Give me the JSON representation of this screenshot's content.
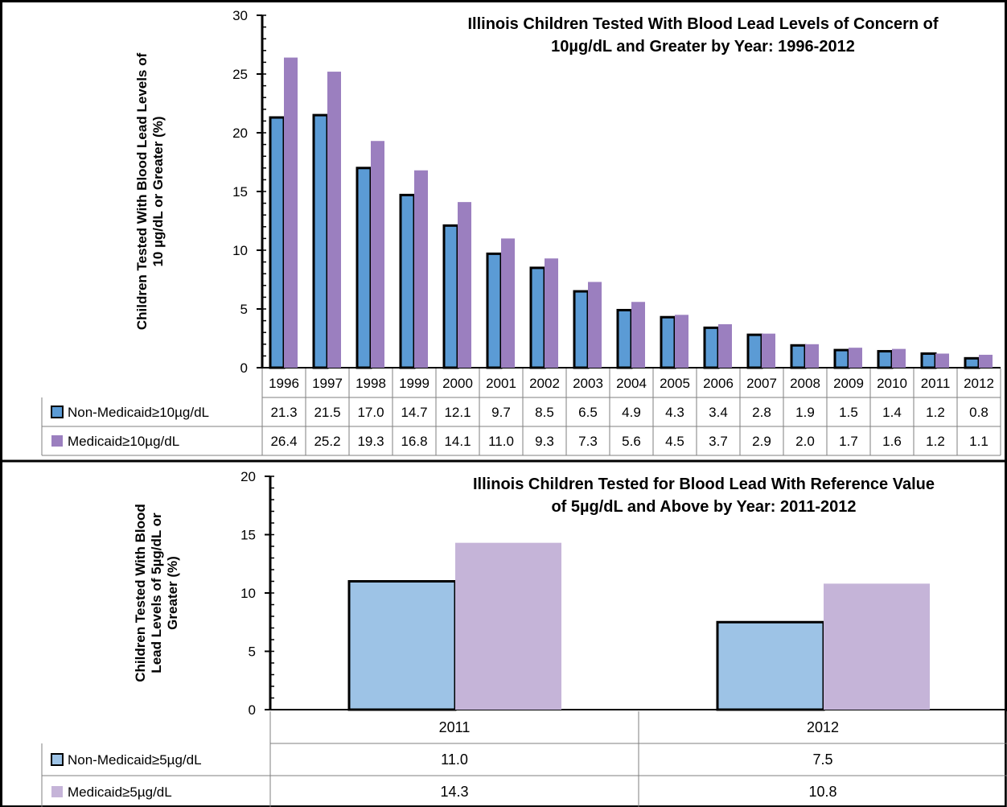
{
  "chart_data": [
    {
      "type": "bar",
      "title_lines": [
        "Illinois Children Tested With Blood Lead Levels of Concern of",
        "10µg/dL and Greater by Year: 1996-2012"
      ],
      "ylabel_lines": [
        "Children Tested With Blood Lead Levels of",
        "10 µg/dL or Greater (%)"
      ],
      "ylim": [
        0,
        30
      ],
      "yticks": [
        "0",
        "5",
        "10",
        "15",
        "20",
        "25",
        "30"
      ],
      "grid": false,
      "legend": "data-table",
      "categories": [
        "1996",
        "1997",
        "1998",
        "1999",
        "2000",
        "2001",
        "2002",
        "2003",
        "2004",
        "2005",
        "2006",
        "2007",
        "2008",
        "2009",
        "2010",
        "2011",
        "2012"
      ],
      "series": [
        {
          "name": "Non-Medicaid≥10µg/dL",
          "color": "#5b9bd5",
          "values": [
            21.3,
            21.5,
            17.0,
            14.7,
            12.1,
            9.7,
            8.5,
            6.5,
            4.9,
            4.3,
            3.4,
            2.8,
            1.9,
            1.5,
            1.4,
            1.2,
            0.8
          ],
          "labels": [
            "21.3",
            "21.5",
            "17.0",
            "14.7",
            "12.1",
            "9.7",
            "8.5",
            "6.5",
            "4.9",
            "4.3",
            "3.4",
            "2.8",
            "1.9",
            "1.5",
            "1.4",
            "1.2",
            "0.8"
          ]
        },
        {
          "name": "Medicaid≥10µg/dL",
          "color": "#9b7fbf",
          "values": [
            26.4,
            25.2,
            19.3,
            16.8,
            14.1,
            11.0,
            9.3,
            7.3,
            5.6,
            4.5,
            3.7,
            2.9,
            2.0,
            1.7,
            1.6,
            1.2,
            1.1
          ],
          "labels": [
            "26.4",
            "25.2",
            "19.3",
            "16.8",
            "14.1",
            "11.0",
            "9.3",
            "7.3",
            "5.6",
            "4.5",
            "3.7",
            "2.9",
            "2.0",
            "1.7",
            "1.6",
            "1.2",
            "1.1"
          ]
        }
      ]
    },
    {
      "type": "bar",
      "title_lines": [
        "Illinois Children Tested for Blood Lead With Reference Value",
        "of 5µg/dL and Above by Year: 2011-2012"
      ],
      "ylabel_lines": [
        "Children Tested With Blood",
        "Lead Levels of 5µg/dL or",
        "Greater (%)"
      ],
      "ylim": [
        0,
        20
      ],
      "yticks": [
        "0",
        "5",
        "10",
        "15",
        "20"
      ],
      "grid": false,
      "legend": "data-table",
      "categories": [
        "2011",
        "2012"
      ],
      "series": [
        {
          "name": "Non-Medicaid≥5µg/dL",
          "color": "#9dc3e6",
          "values": [
            11.0,
            7.5
          ],
          "labels": [
            "11.0",
            "7.5"
          ]
        },
        {
          "name": "Medicaid≥5µg/dL",
          "color": "#c5b4d8",
          "values": [
            14.3,
            10.8
          ],
          "labels": [
            "14.3",
            "10.8"
          ]
        }
      ]
    }
  ]
}
